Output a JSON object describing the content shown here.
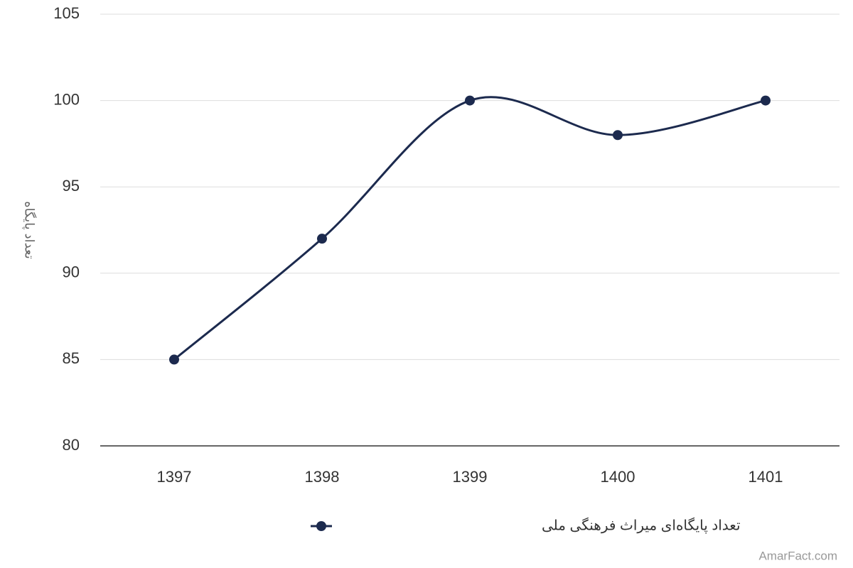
{
  "chart_data": {
    "type": "line",
    "smooth": true,
    "y_label": "تعداد پایگاه",
    "categories": [
      "1397",
      "1398",
      "1399",
      "1400",
      "1401"
    ],
    "series": [
      {
        "name": "تعداد پایگاه‌ای میراث فرهنگی ملی",
        "color": "#1c2a4e",
        "values": [
          85,
          92,
          100,
          98,
          100
        ]
      }
    ],
    "ylim": [
      80,
      105
    ],
    "yticks": [
      80,
      85,
      90,
      95,
      100,
      105
    ],
    "grid": true,
    "legend": "bottom",
    "watermark": "AmarFact.com"
  }
}
